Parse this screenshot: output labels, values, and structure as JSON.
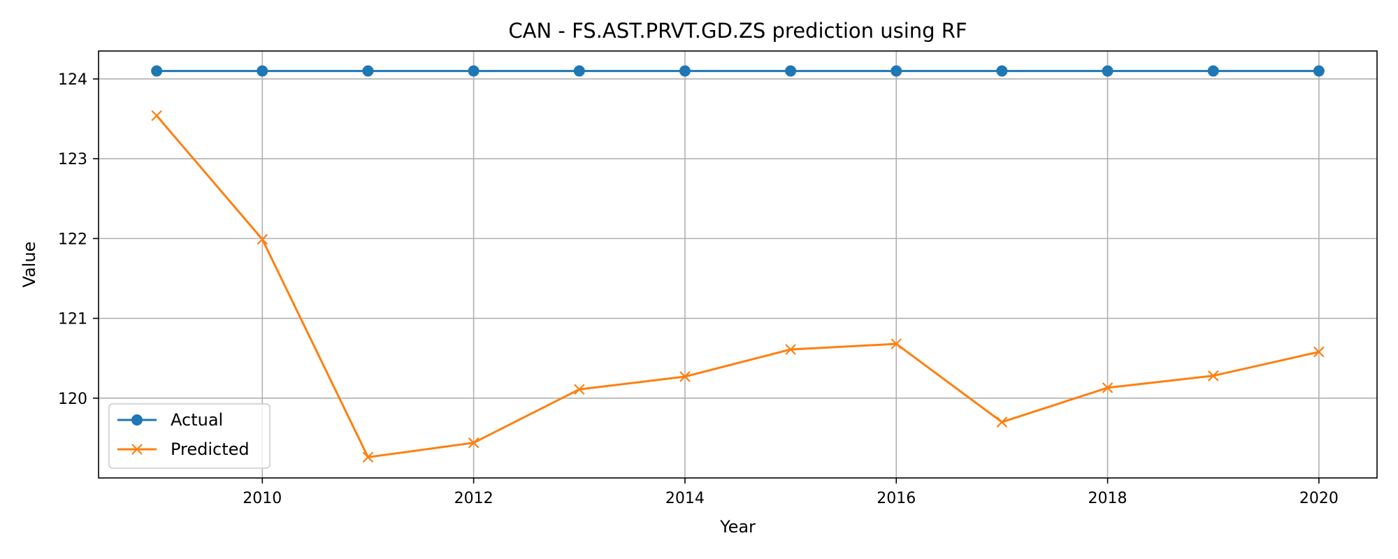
{
  "chart_data": {
    "type": "line",
    "title": "CAN - FS.AST.PRVT.GD.ZS prediction using RF",
    "xlabel": "Year",
    "ylabel": "Value",
    "x": [
      2009,
      2010,
      2011,
      2012,
      2013,
      2014,
      2015,
      2016,
      2017,
      2018,
      2019,
      2020
    ],
    "xlim": [
      2008.45,
      2020.55
    ],
    "ylim": [
      119.0,
      124.35
    ],
    "xticks": [
      2010,
      2012,
      2014,
      2016,
      2018,
      2020
    ],
    "yticks": [
      120,
      121,
      122,
      123,
      124
    ],
    "grid": true,
    "legend_position": "lower-left",
    "series": [
      {
        "name": "Actual",
        "color": "#1f77b4",
        "marker": "circle",
        "values": [
          124.1,
          124.1,
          124.1,
          124.1,
          124.1,
          124.1,
          124.1,
          124.1,
          124.1,
          124.1,
          124.1,
          124.1
        ]
      },
      {
        "name": "Predicted",
        "color": "#ff7f0e",
        "marker": "x",
        "values": [
          123.54,
          121.99,
          119.26,
          119.44,
          120.11,
          120.27,
          120.61,
          120.68,
          119.7,
          120.13,
          120.28,
          120.58
        ]
      }
    ]
  }
}
